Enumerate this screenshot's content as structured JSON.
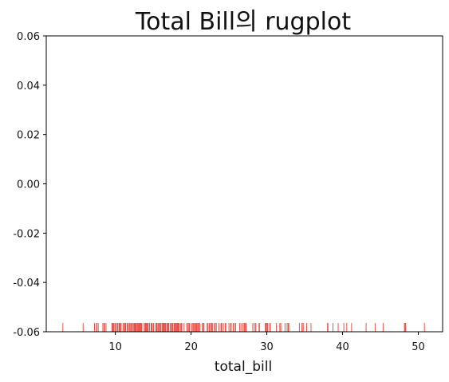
{
  "chart_data": {
    "type": "rug",
    "title": "Total Bill의 rugplot",
    "xlabel": "total_bill",
    "ylabel": "",
    "xlim": [
      0.88,
      53.21
    ],
    "ylim": [
      -0.06,
      0.06
    ],
    "x_ticks": [
      10,
      20,
      30,
      40,
      50
    ],
    "x_tick_labels": [
      "10",
      "20",
      "30",
      "40",
      "50"
    ],
    "y_ticks": [
      -0.06,
      -0.04,
      -0.02,
      0.0,
      0.02,
      0.04,
      0.06
    ],
    "y_tick_labels": [
      "-0.06",
      "-0.04",
      "-0.02",
      "0.00",
      "0.02",
      "0.04",
      "0.06"
    ],
    "grid": false,
    "legend": "none",
    "rug_color": "#e8534a",
    "axis_color": "#000000",
    "values": [
      3.07,
      5.75,
      7.25,
      7.51,
      7.56,
      7.74,
      8.35,
      8.51,
      8.52,
      8.58,
      8.77,
      9.55,
      9.6,
      9.68,
      9.78,
      9.94,
      10.07,
      10.09,
      10.27,
      10.29,
      10.33,
      10.34,
      10.51,
      10.59,
      10.63,
      10.65,
      10.77,
      11.02,
      11.17,
      11.24,
      11.35,
      11.38,
      11.59,
      11.61,
      11.69,
      11.87,
      12.02,
      12.03,
      12.16,
      12.26,
      12.43,
      12.46,
      12.48,
      12.54,
      12.6,
      12.66,
      12.69,
      12.74,
      12.76,
      12.9,
      13.0,
      13.03,
      13.13,
      13.16,
      13.27,
      13.28,
      13.37,
      13.39,
      13.42,
      13.51,
      13.81,
      13.94,
      14.0,
      14.07,
      14.15,
      14.26,
      14.31,
      14.48,
      14.52,
      14.73,
      14.78,
      14.83,
      15.01,
      15.04,
      15.06,
      15.36,
      15.38,
      15.42,
      15.48,
      15.53,
      15.69,
      15.77,
      15.81,
      15.95,
      15.98,
      16.0,
      16.04,
      16.21,
      16.27,
      16.29,
      16.31,
      16.4,
      16.45,
      16.47,
      16.49,
      16.58,
      16.66,
      16.82,
      16.93,
      16.97,
      16.99,
      17.07,
      17.26,
      17.29,
      17.31,
      17.46,
      17.47,
      17.51,
      17.59,
      17.78,
      17.81,
      17.82,
      17.89,
      17.92,
      18.04,
      18.15,
      18.24,
      18.26,
      18.28,
      18.29,
      18.35,
      18.43,
      18.64,
      18.69,
      18.71,
      18.78,
      19.08,
      19.44,
      19.49,
      19.65,
      19.77,
      19.81,
      19.82,
      20.08,
      20.23,
      20.27,
      20.29,
      20.45,
      20.49,
      20.53,
      20.65,
      20.69,
      20.76,
      20.9,
      20.92,
      21.01,
      21.16,
      21.5,
      21.58,
      21.7,
      22.12,
      22.23,
      22.42,
      22.49,
      22.67,
      22.75,
      22.76,
      22.82,
      23.1,
      23.17,
      23.33,
      23.68,
      23.95,
      24.01,
      24.06,
      24.27,
      24.52,
      24.55,
      24.59,
      25.0,
      25.21,
      25.28,
      25.29,
      25.56,
      25.71,
      25.89,
      26.41,
      26.59,
      26.86,
      26.88,
      27.05,
      27.18,
      27.2,
      27.28,
      28.15,
      28.17,
      28.44,
      28.55,
      28.97,
      29.03,
      29.8,
      29.85,
      29.93,
      30.06,
      30.14,
      30.4,
      30.46,
      31.27,
      31.71,
      31.85,
      32.4,
      32.68,
      32.83,
      32.9,
      34.3,
      34.63,
      34.65,
      34.81,
      35.26,
      35.83,
      38.01,
      38.07,
      38.73,
      39.42,
      40.17,
      40.55,
      41.19,
      43.11,
      44.3,
      45.35,
      48.17,
      48.27,
      48.33,
      50.81
    ]
  }
}
